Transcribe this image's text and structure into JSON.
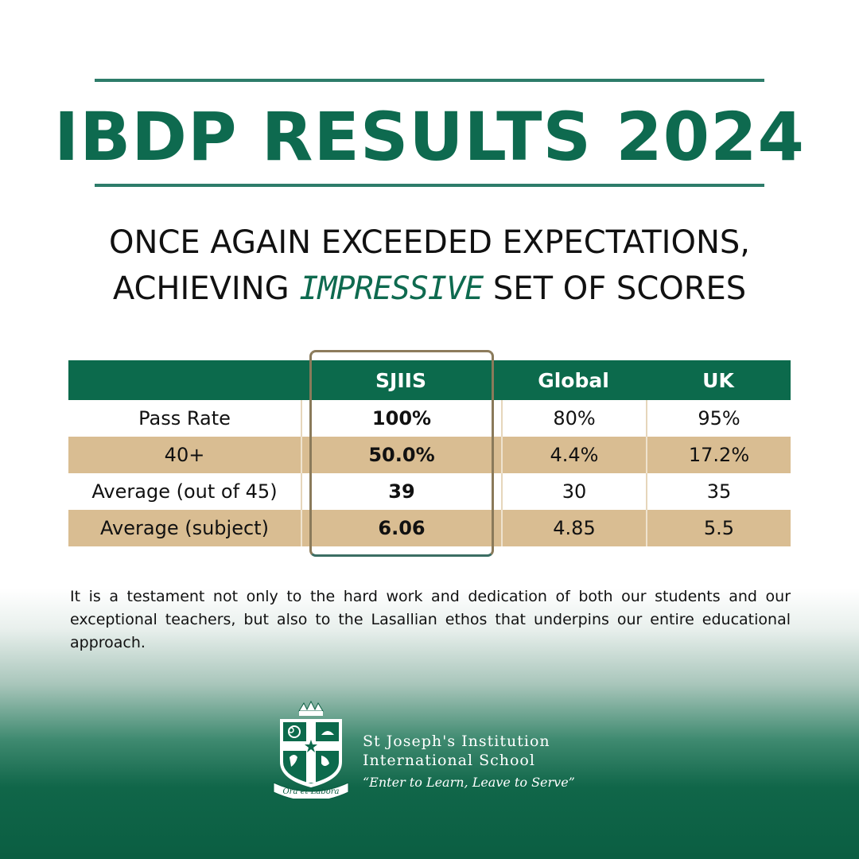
{
  "title": "IBDP RESULTS 2024",
  "subtitle": {
    "line1": "ONCE AGAIN EXCEEDED EXPECTATIONS,",
    "line2_before": "ACHIEVING",
    "line2_emphasis": "IMPRESSIVE",
    "line2_after": "SET OF SCORES"
  },
  "table": {
    "headers": [
      "",
      "SJIIS",
      "Global",
      "UK"
    ],
    "rows": [
      [
        "Pass Rate",
        "100%",
        "80%",
        "95%"
      ],
      [
        "40+",
        "50.0%",
        "4.4%",
        "17.2%"
      ],
      [
        "Average (out of 45)",
        "39",
        "30",
        "35"
      ],
      [
        "Average (subject)",
        "6.06",
        "4.85",
        "5.5"
      ]
    ]
  },
  "paragraph": "It is a testament not only to the hard work and dedication of both our students and our exceptional teachers, but also to the Lasallian ethos that underpins our entire educational approach.",
  "school": {
    "name_line1": "St Joseph's Institution",
    "name_line2": "International School",
    "motto": "“Enter to Learn, Leave to Serve”",
    "crest_banner": "Ora et Labora"
  },
  "colors": {
    "brand_green": "#0e6a4f",
    "table_header": "#0c6a4c",
    "table_tan": "#d9bd92",
    "rule": "#2d7c6a"
  }
}
